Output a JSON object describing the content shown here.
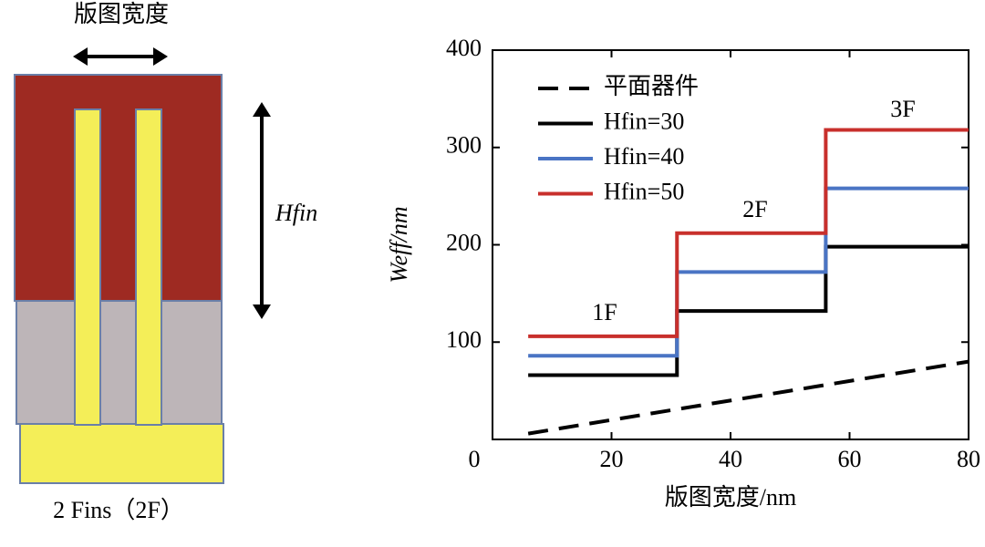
{
  "diagram": {
    "width_label": "版图宽度",
    "height_label": "Hfin",
    "caption": "2 Fins（2F）"
  },
  "chart_data": {
    "type": "line",
    "xlabel": "版图宽度/nm",
    "ylabel": "Weff/nm",
    "xlim": [
      0,
      80
    ],
    "xticks": [
      0,
      20,
      40,
      60,
      80
    ],
    "ylim": [
      0,
      400
    ],
    "yticks": [
      100,
      200,
      300,
      400
    ],
    "legend": "upper left",
    "annotations": [
      "1F",
      "2F",
      "3F"
    ],
    "series": [
      {
        "name": "平面器件",
        "color": "#000000",
        "dashed": true,
        "x": [
          6,
          80
        ],
        "values": [
          6,
          80
        ]
      },
      {
        "name": "Hfin=30",
        "color": "#000000",
        "dashed": false,
        "x": [
          6,
          31,
          31,
          56,
          56,
          80
        ],
        "values": [
          66,
          66,
          132,
          132,
          198,
          198
        ]
      },
      {
        "name": "Hfin=40",
        "color": "#4a74c4",
        "dashed": false,
        "x": [
          6,
          31,
          31,
          56,
          56,
          80
        ],
        "values": [
          86,
          86,
          172,
          172,
          258,
          258
        ]
      },
      {
        "name": "Hfin=50",
        "color": "#c8302c",
        "dashed": false,
        "x": [
          6,
          31,
          31,
          56,
          56,
          80
        ],
        "values": [
          106,
          106,
          212,
          212,
          318,
          318
        ]
      }
    ]
  }
}
